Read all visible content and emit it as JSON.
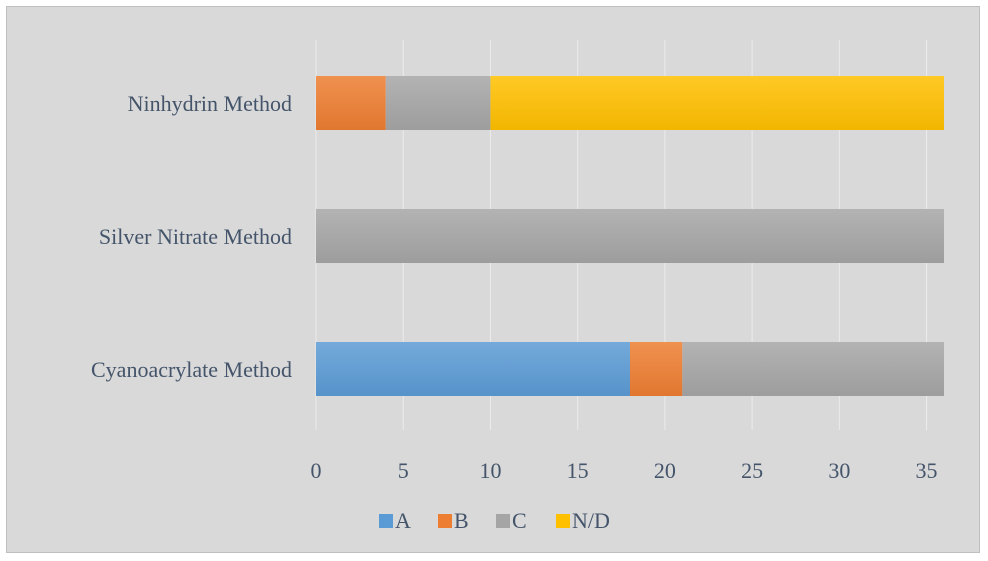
{
  "chart_data": {
    "type": "bar",
    "orientation": "horizontal",
    "stacked": true,
    "categories": [
      "Cyanoacrylate Method",
      "Silver Nitrate Method",
      "Ninhydrin Method"
    ],
    "series": [
      {
        "name": "A",
        "values": [
          18,
          0,
          0
        ],
        "color": "#5b9bd5"
      },
      {
        "name": "B",
        "values": [
          3,
          0,
          4
        ],
        "color": "#ed7d31"
      },
      {
        "name": "C",
        "values": [
          15,
          36,
          6
        ],
        "color": "#a5a5a5"
      },
      {
        "name": "N/D",
        "values": [
          0,
          0,
          26
        ],
        "color": "#ffc000"
      }
    ],
    "xlim": [
      0,
      36
    ],
    "xticks": [
      "0",
      "5",
      "10",
      "15",
      "20",
      "25",
      "30",
      "35"
    ],
    "grid": "vertical",
    "legend_position": "bottom",
    "background": "#d9d9d9",
    "gridline_color": "#ececec"
  }
}
